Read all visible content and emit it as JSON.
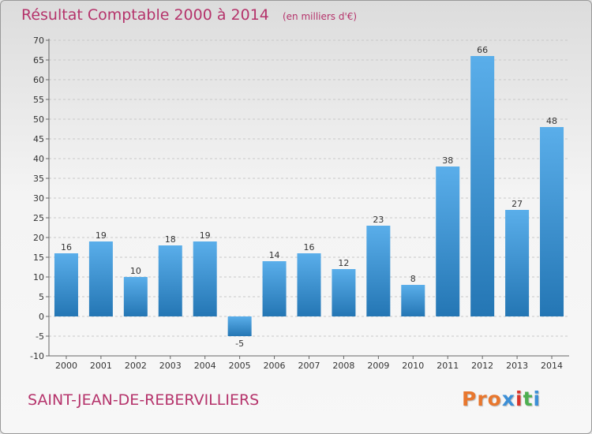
{
  "header": {
    "title": "Résultat Comptable 2000 à 2014",
    "subtitle": "(en milliers d'€)"
  },
  "footer": {
    "commune": "SAINT-JEAN-DE-REBERVILLIERS",
    "brand": "Proxiti"
  },
  "colors": {
    "title": "#b5336b",
    "bar_top": "#5aaeea",
    "bar_bottom": "#2476b4",
    "grid": "#c8c8c8",
    "axis_text": "#333333",
    "brand_letters": [
      "#e8772e",
      "#e8772e",
      "#e8772e",
      "#3c8fd6",
      "#d9352b",
      "#4caf50",
      "#3c8fd6"
    ]
  },
  "chart_data": {
    "type": "bar",
    "categories": [
      "2000",
      "2001",
      "2002",
      "2003",
      "2004",
      "2005",
      "2006",
      "2007",
      "2008",
      "2009",
      "2010",
      "2011",
      "2012",
      "2013",
      "2014"
    ],
    "values": [
      16,
      19,
      10,
      18,
      19,
      -5,
      14,
      16,
      12,
      23,
      8,
      38,
      66,
      27,
      48
    ],
    "title": "Résultat Comptable 2000 à 2014",
    "subtitle": "(en milliers d'€)",
    "xlabel": "",
    "ylabel": "",
    "ylim": [
      -10,
      70
    ],
    "yticks": [
      -10,
      -5,
      0,
      5,
      10,
      15,
      20,
      25,
      30,
      35,
      40,
      45,
      50,
      55,
      60,
      65,
      70
    ],
    "grid": "horizontal dashed",
    "legend": "none"
  }
}
